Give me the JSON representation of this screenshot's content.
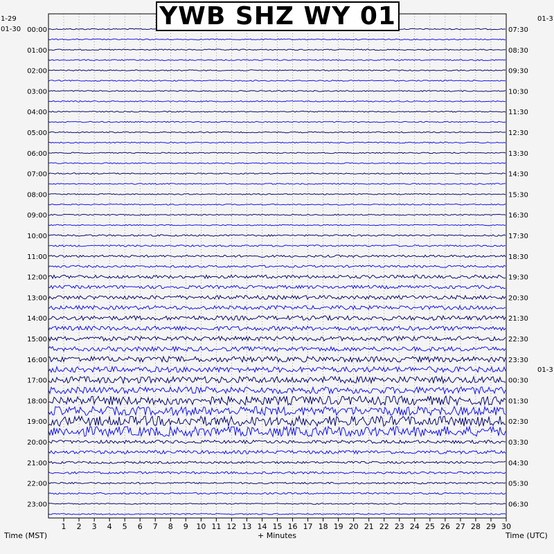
{
  "chart_data": {
    "type": "helicorder",
    "title": "YWB SHZ WY 01",
    "xlabel": "+ Minutes",
    "left_axis_label": "Time (MST)",
    "right_axis_label": "Time (UTC)",
    "x_ticks": [
      1,
      2,
      3,
      4,
      5,
      6,
      7,
      8,
      9,
      10,
      11,
      12,
      13,
      14,
      15,
      16,
      17,
      18,
      19,
      20,
      21,
      22,
      23,
      24,
      25,
      26,
      27,
      28,
      29,
      30
    ],
    "xlim": [
      0,
      30
    ],
    "left_header": [
      "1-29",
      "01-30"
    ],
    "right_header": [
      "01-3"
    ],
    "right_mid_header": [
      "01-3"
    ],
    "left_times": [
      "00:00",
      "01:00",
      "02:00",
      "03:00",
      "04:00",
      "05:00",
      "06:00",
      "07:00",
      "08:00",
      "09:00",
      "10:00",
      "11:00",
      "12:00",
      "13:00",
      "14:00",
      "15:00",
      "16:00",
      "17:00",
      "18:00",
      "19:00",
      "20:00",
      "21:00",
      "22:00",
      "23:00"
    ],
    "right_times": [
      "07:30",
      "08:30",
      "09:30",
      "10:30",
      "11:30",
      "12:30",
      "13:30",
      "14:30",
      "15:30",
      "16:30",
      "17:30",
      "18:30",
      "19:30",
      "20:30",
      "21:30",
      "22:30",
      "23:30",
      "00:30",
      "01:30",
      "02:30",
      "03:30",
      "04:30",
      "05:30",
      "06:30"
    ],
    "lines_per_hour": 2,
    "trace_colors": [
      "#0a0a6e",
      "#1414ee"
    ],
    "clip_color": "#ee0000",
    "grid": "dotted-vertical",
    "noise_profile": [
      1,
      1,
      1,
      1,
      1,
      1,
      1,
      1,
      1,
      1,
      1,
      1,
      1,
      1,
      1,
      1,
      1,
      1,
      1,
      1,
      1.5,
      1.5,
      2,
      2,
      3,
      3,
      3.5,
      3.5,
      4,
      4,
      4,
      4,
      5,
      5,
      6,
      6,
      8,
      8,
      9,
      9,
      3,
      3,
      2,
      2,
      1.5,
      1.5,
      1,
      1
    ]
  }
}
